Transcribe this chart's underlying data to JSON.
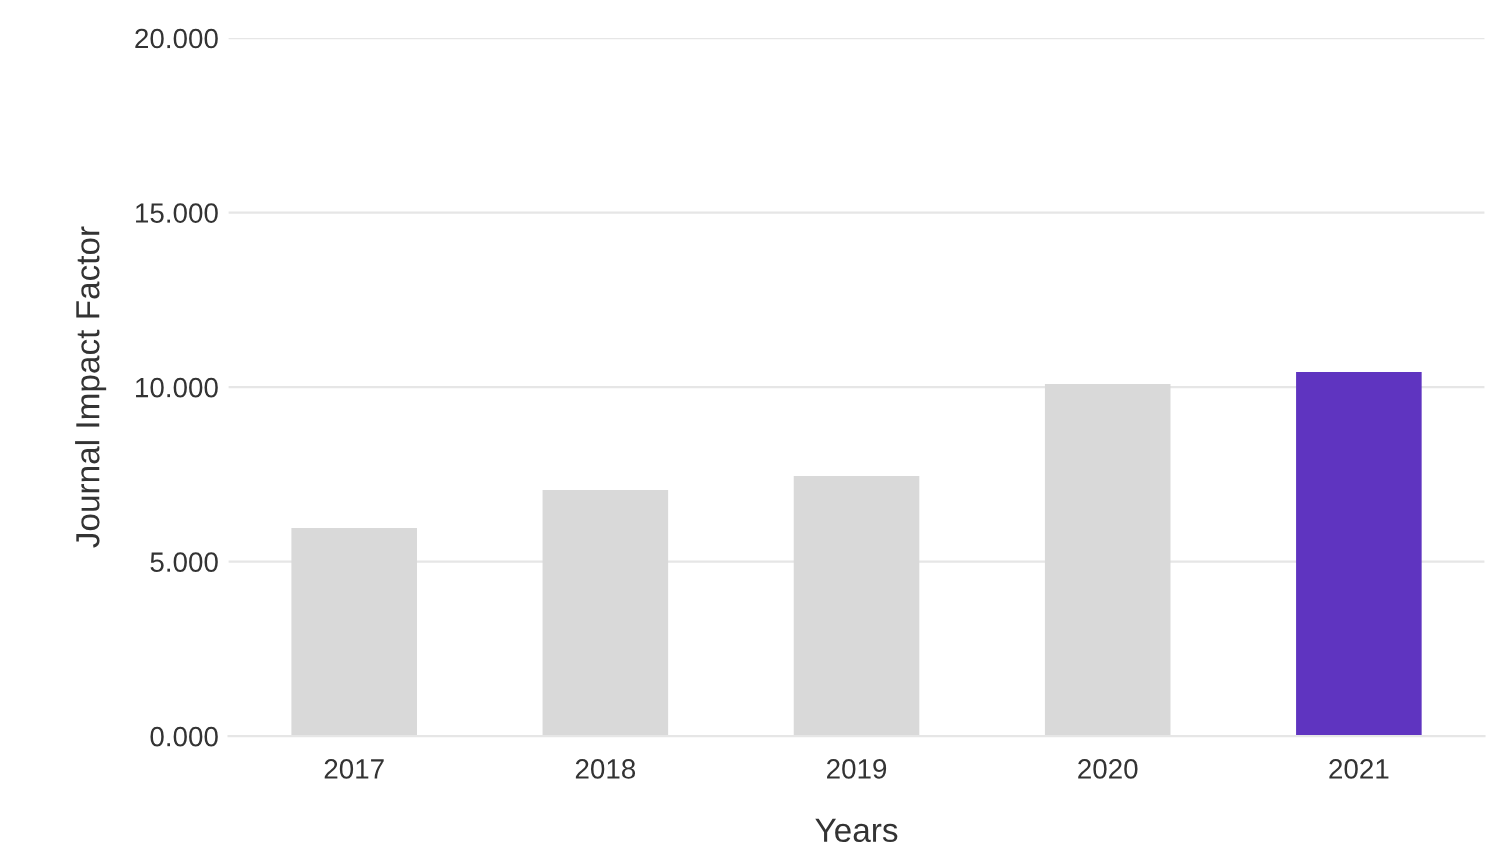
{
  "chart_data": {
    "type": "bar",
    "xlabel": "Years",
    "ylabel": "Journal Impact Factor",
    "categories": [
      "2017",
      "2018",
      "2019",
      "2020",
      "2021"
    ],
    "values": [
      5.96,
      7.05,
      7.45,
      10.09,
      10.43
    ],
    "colors": [
      "#d9d9d9",
      "#d9d9d9",
      "#d9d9d9",
      "#d9d9d9",
      "#5f34c0"
    ],
    "ylim": [
      0,
      20
    ],
    "yticks": [
      {
        "value": 0,
        "label": "0.000"
      },
      {
        "value": 5,
        "label": "5.000"
      },
      {
        "value": 10,
        "label": "10.000"
      },
      {
        "value": 15,
        "label": "15.000"
      },
      {
        "value": 20,
        "label": "20.000"
      }
    ],
    "grid": "y"
  }
}
